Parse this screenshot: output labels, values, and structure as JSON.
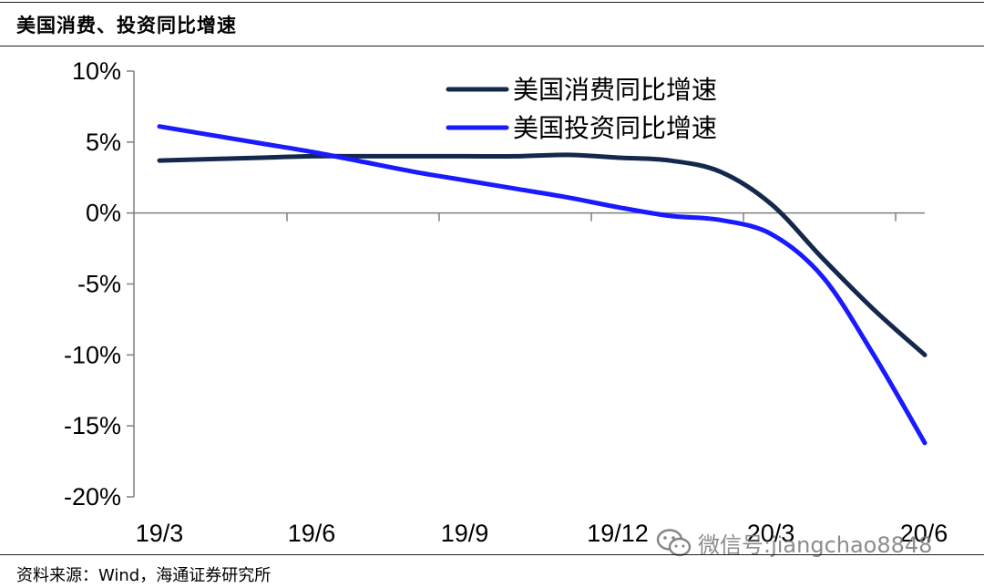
{
  "header": {
    "title": "美国消费、投资同比增速"
  },
  "footer": {
    "source": "资料来源：Wind，海通证券研究所"
  },
  "watermark": {
    "text": "微信号:jiangchao8848",
    "icon": "wechat-icon"
  },
  "colors": {
    "consumption": "#14284b",
    "investment": "#1a1aff",
    "axis": "#7f7f7f"
  },
  "chart_data": {
    "type": "line",
    "title": "",
    "xlabel": "",
    "ylabel": "",
    "ylim": [
      -20,
      10
    ],
    "yticks": [
      "10%",
      "5%",
      "0%",
      "-5%",
      "-10%",
      "-15%",
      "-20%"
    ],
    "x": [
      "19/3",
      "19/4",
      "19/5",
      "19/6",
      "19/7",
      "19/8",
      "19/9",
      "19/10",
      "19/11",
      "19/12",
      "20/1",
      "20/2",
      "20/3",
      "20/4",
      "20/5",
      "20/6"
    ],
    "xticks": [
      "19/3",
      "19/6",
      "19/9",
      "19/12",
      "20/3",
      "20/6"
    ],
    "legend_position": "top-right",
    "grid": false,
    "series": [
      {
        "name": "美国消费同比增速",
        "color": "#14284b",
        "values": [
          3.7,
          3.8,
          3.9,
          4.0,
          4.0,
          4.0,
          4.0,
          4.0,
          4.1,
          3.9,
          3.7,
          2.9,
          0.6,
          -3.2,
          -6.8,
          -10.0
        ]
      },
      {
        "name": "美国投资同比增速",
        "color": "#1a1aff",
        "values": [
          6.1,
          5.5,
          4.9,
          4.3,
          3.6,
          2.9,
          2.3,
          1.7,
          1.1,
          0.4,
          -0.2,
          -0.5,
          -1.5,
          -4.5,
          -10.0,
          -16.2
        ]
      }
    ]
  }
}
